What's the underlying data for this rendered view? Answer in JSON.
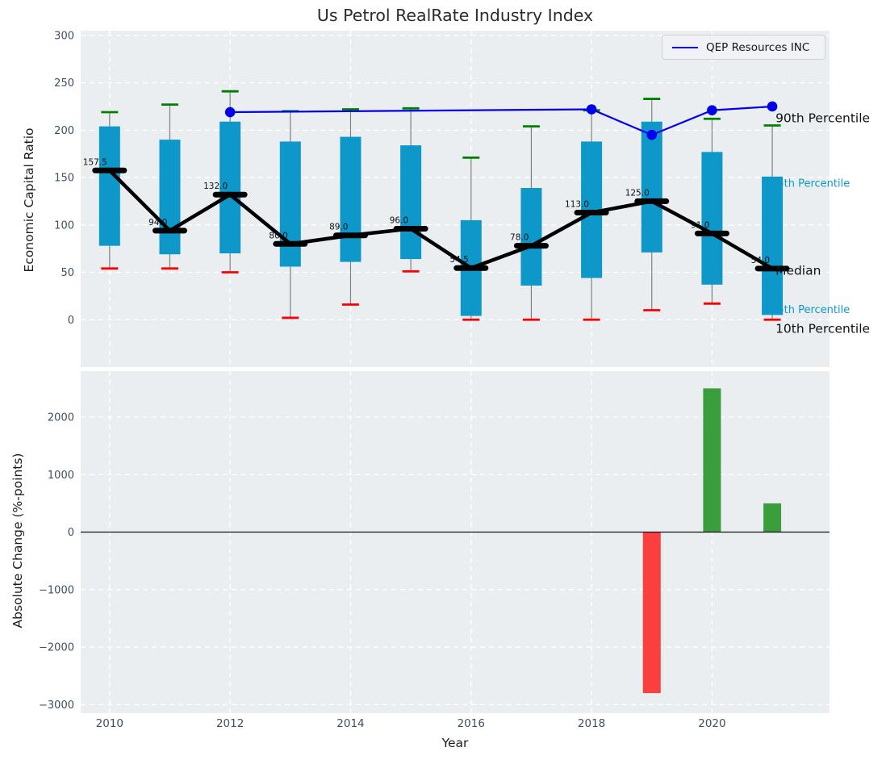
{
  "title": "Us Petrol RealRate Industry Index",
  "legend": {
    "label": "QEP Resources INC"
  },
  "colors": {
    "box": "#0e98ca",
    "whisker": "#808080",
    "cap_high": "#008000",
    "cap_low": "#fe0000",
    "median": "#000000",
    "qep_line": "#0000ee",
    "bar_up": "#3a9e3d",
    "bar_down": "#fb3e3e",
    "plot_bg": "#eaeef1",
    "grid": "#ffffff",
    "tick": "#3e4e62",
    "annotation_minor": "#0e98ca",
    "annotation_major": "#111111"
  },
  "chart_data": [
    {
      "type": "boxplot-line",
      "title": "Us Petrol RealRate Industry Index",
      "ylabel": "Economic Capital Ratio",
      "ylim": [
        -50,
        305
      ],
      "yticks": [
        0,
        50,
        100,
        150,
        200,
        250,
        300
      ],
      "grid": true,
      "categories": [
        2010,
        2011,
        2012,
        2013,
        2014,
        2015,
        2016,
        2017,
        2018,
        2019,
        2020,
        2021
      ],
      "series": [
        {
          "name": "90th Percentile",
          "values": [
            219,
            227,
            241,
            220,
            222,
            223,
            171,
            204,
            221,
            233,
            212,
            205
          ]
        },
        {
          "name": "75th Percentile",
          "values": [
            204,
            190,
            209,
            188,
            193,
            184,
            105,
            139,
            188,
            209,
            177,
            151
          ]
        },
        {
          "name": "Median",
          "values": [
            157.5,
            94,
            132,
            80,
            89,
            96,
            54.5,
            78,
            113,
            125,
            91,
            54
          ]
        },
        {
          "name": "25th Percentile",
          "values": [
            78,
            69,
            70,
            56,
            61,
            64,
            4,
            36,
            44,
            71,
            37,
            5
          ]
        },
        {
          "name": "10th Percentile",
          "values": [
            54,
            54,
            50,
            2,
            16,
            51,
            0,
            0,
            0,
            10,
            17,
            0
          ]
        }
      ],
      "median_labels": [
        "157.5",
        "94.0",
        "132.0",
        "80.0",
        "89.0",
        "96.0",
        "54.5",
        "78.0",
        "113.0",
        "125.0",
        "91.0",
        "54.0"
      ],
      "overlay_line": {
        "name": "QEP Resources INC",
        "x": [
          2012,
          2018,
          2019,
          2020,
          2021
        ],
        "y": [
          219,
          222,
          195,
          221,
          225
        ],
        "legend_position": "upper right"
      },
      "right_annotations": [
        {
          "text": "90th Percentile",
          "anchor_value": 213,
          "minor": false
        },
        {
          "text": "75th Percentile",
          "anchor_value": 144,
          "minor": true
        },
        {
          "text": "Median",
          "anchor_value": 52,
          "minor": false
        },
        {
          "text": "25th Percentile",
          "anchor_value": 11,
          "minor": true
        },
        {
          "text": "10th Percentile",
          "anchor_value": -9,
          "minor": false
        }
      ]
    },
    {
      "type": "bar",
      "ylabel": "Absolute Change (%-points)",
      "xlabel": "Year",
      "ylim": [
        -3150,
        2800
      ],
      "yticks": [
        -3000,
        -2000,
        -1000,
        0,
        1000,
        2000
      ],
      "xticks": [
        2010,
        2012,
        2014,
        2016,
        2018,
        2020
      ],
      "x": [
        2019,
        2020,
        2021
      ],
      "values": [
        -2800,
        2500,
        500
      ],
      "bar_colors": [
        "down",
        "up",
        "up"
      ]
    }
  ]
}
